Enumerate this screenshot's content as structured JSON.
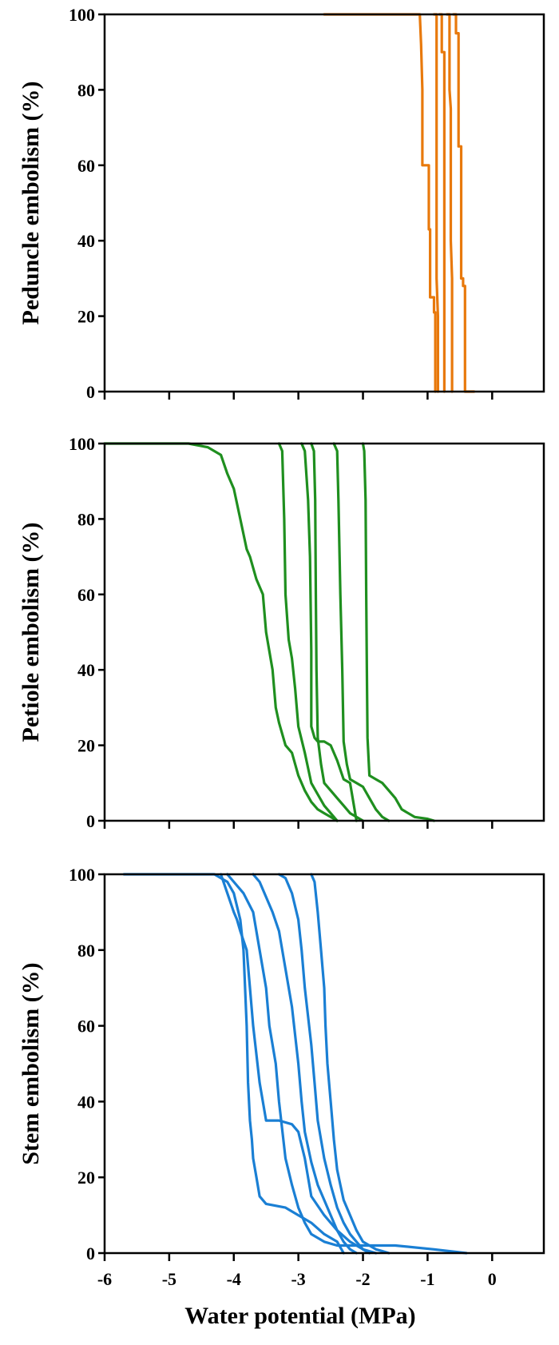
{
  "chart_data": [
    {
      "type": "line",
      "ylabel": "Peduncle embolism (%)",
      "xlabel": "",
      "xlim": [
        -6,
        0.8
      ],
      "ylim": [
        0,
        100
      ],
      "yticks": [
        0,
        20,
        40,
        60,
        80,
        100
      ],
      "xticks": [
        -6,
        -5,
        -4,
        -3,
        -2,
        -1,
        0
      ],
      "xtick_labels_visible": false,
      "grid": false,
      "color": "#e8790c",
      "series": [
        {
          "x": [
            -2.6,
            -1.12,
            -1.1,
            -1.08,
            -1.08,
            -0.98,
            -0.98,
            -0.96,
            -0.96,
            -0.9,
            -0.9,
            -0.88,
            -0.88
          ],
          "y": [
            100,
            100,
            92,
            80,
            60,
            60,
            43,
            43,
            25,
            25,
            21,
            21,
            0
          ]
        },
        {
          "x": [
            -0.9,
            -0.86,
            -0.86,
            -0.84,
            -0.84
          ],
          "y": [
            100,
            100,
            30,
            20,
            0
          ]
        },
        {
          "x": [
            -0.82,
            -0.78,
            -0.78,
            -0.74,
            -0.74,
            -0.74
          ],
          "y": [
            100,
            100,
            90,
            90,
            40,
            0
          ]
        },
        {
          "x": [
            -0.7,
            -0.66,
            -0.66,
            -0.64,
            -0.64,
            -0.62,
            -0.62
          ],
          "y": [
            100,
            100,
            80,
            75,
            40,
            30,
            0
          ]
        },
        {
          "x": [
            -0.6,
            -0.56,
            -0.56,
            -0.52,
            -0.52,
            -0.48,
            -0.48,
            -0.45,
            -0.45,
            -0.42,
            -0.42,
            -0.28
          ],
          "y": [
            100,
            100,
            95,
            95,
            65,
            65,
            30,
            30,
            28,
            28,
            0,
            0
          ]
        }
      ]
    },
    {
      "type": "line",
      "ylabel": "Petiole embolism (%)",
      "xlabel": "",
      "xlim": [
        -6,
        0.8
      ],
      "ylim": [
        0,
        100
      ],
      "yticks": [
        0,
        20,
        40,
        60,
        80,
        100
      ],
      "xticks": [
        -6,
        -5,
        -4,
        -3,
        -2,
        -1,
        0
      ],
      "xtick_labels_visible": false,
      "grid": false,
      "color": "#1f8f1f",
      "series": [
        {
          "x": [
            -6,
            -4.7,
            -4.4,
            -4.2,
            -4.1,
            -4.0,
            -3.9,
            -3.8,
            -3.75,
            -3.65,
            -3.55,
            -3.5,
            -3.4,
            -3.35,
            -3.3,
            -3.2,
            -3.1,
            -3.0,
            -2.9,
            -2.8,
            -2.7,
            -2.6,
            -2.5,
            -2.4
          ],
          "y": [
            100,
            100,
            99,
            97,
            92,
            88,
            80,
            72,
            70,
            64,
            60,
            50,
            40,
            30,
            26,
            20,
            18,
            12,
            8,
            5,
            3,
            2,
            1,
            0
          ]
        },
        {
          "x": [
            -3.3,
            -3.25,
            -3.22,
            -3.2,
            -3.15,
            -3.1,
            -3.05,
            -3.0,
            -2.9,
            -2.8,
            -2.7,
            -2.6,
            -2.5,
            -2.4
          ],
          "y": [
            100,
            98,
            80,
            60,
            48,
            43,
            35,
            25,
            18,
            10,
            7,
            4,
            2,
            0
          ]
        },
        {
          "x": [
            -2.95,
            -2.9,
            -2.85,
            -2.82,
            -2.8,
            -2.8,
            -2.75,
            -2.7,
            -2.6,
            -2.5,
            -2.4,
            -2.3,
            -2.2,
            -2.1
          ],
          "y": [
            100,
            98,
            85,
            70,
            45,
            25,
            22,
            21,
            21,
            20,
            16,
            11,
            10,
            0
          ]
        },
        {
          "x": [
            -2.8,
            -2.76,
            -2.74,
            -2.73,
            -2.72,
            -2.7,
            -2.65,
            -2.6,
            -2.5,
            -2.4,
            -2.3,
            -2.2,
            -2.1,
            -2.0
          ],
          "y": [
            100,
            98,
            85,
            60,
            40,
            22,
            15,
            10,
            8,
            6,
            4,
            2,
            1,
            0
          ]
        },
        {
          "x": [
            -2.45,
            -2.4,
            -2.38,
            -2.35,
            -2.32,
            -2.3,
            -2.25,
            -2.2,
            -2.1,
            -2.0,
            -1.9,
            -1.8,
            -1.7,
            -1.6
          ],
          "y": [
            100,
            98,
            85,
            60,
            40,
            21,
            15,
            11,
            10,
            9,
            6,
            3,
            1,
            0
          ]
        },
        {
          "x": [
            -2.0,
            -1.98,
            -1.96,
            -1.95,
            -1.94,
            -1.93,
            -1.9,
            -1.8,
            -1.7,
            -1.6,
            -1.5,
            -1.4,
            -1.2,
            -1.0,
            -0.9
          ],
          "y": [
            100,
            98,
            85,
            60,
            40,
            22,
            12,
            11,
            10,
            8,
            6,
            3,
            1,
            0.5,
            0
          ]
        }
      ]
    },
    {
      "type": "line",
      "ylabel": "Stem embolism (%)",
      "xlabel": "Water potential (MPa)",
      "xlim": [
        -6,
        0.8
      ],
      "ylim": [
        0,
        100
      ],
      "yticks": [
        0,
        20,
        40,
        60,
        80,
        100
      ],
      "xticks": [
        -6,
        -5,
        -4,
        -3,
        -2,
        -1,
        0
      ],
      "xtick_labels": [
        "-6",
        "-5",
        "-4",
        "-3",
        "-2",
        "-1",
        "0"
      ],
      "grid": false,
      "color": "#1a7fd4",
      "series": [
        {
          "x": [
            -5.7,
            -4.3,
            -4.1,
            -4.0,
            -3.9,
            -3.85,
            -3.8,
            -3.78,
            -3.75,
            -3.72,
            -3.7,
            -3.65,
            -3.6,
            -3.5,
            -3.2,
            -3.0,
            -2.8,
            -2.6,
            -2.4,
            -2.3
          ],
          "y": [
            100,
            100,
            98,
            95,
            88,
            80,
            60,
            45,
            35,
            30,
            25,
            20,
            15,
            13,
            12,
            10,
            8,
            5,
            3,
            0
          ]
        },
        {
          "x": [
            -4.2,
            -4.1,
            -4.0,
            -3.95,
            -3.9,
            -3.8,
            -3.75,
            -3.7,
            -3.6,
            -3.5,
            -3.3,
            -3.1,
            -3.0,
            -2.9,
            -2.8,
            -2.6,
            -2.4,
            -2.2,
            -2.0,
            -1.8
          ],
          "y": [
            100,
            95,
            90,
            88,
            85,
            80,
            70,
            60,
            45,
            35,
            35,
            34,
            32,
            25,
            15,
            10,
            6,
            3,
            1,
            0
          ]
        },
        {
          "x": [
            -4.1,
            -4.0,
            -3.85,
            -3.7,
            -3.6,
            -3.5,
            -3.45,
            -3.4,
            -3.35,
            -3.3,
            -3.2,
            -3.1,
            -3.0,
            -2.9,
            -2.8,
            -2.6,
            -2.4,
            -2.2,
            -2.0,
            -1.5,
            -0.9,
            -0.4
          ],
          "y": [
            100,
            98,
            95,
            90,
            80,
            70,
            60,
            55,
            50,
            40,
            25,
            18,
            12,
            8,
            5,
            3,
            2,
            2,
            2,
            2,
            1,
            0
          ]
        },
        {
          "x": [
            -3.7,
            -3.6,
            -3.4,
            -3.3,
            -3.2,
            -3.1,
            -3.0,
            -2.95,
            -2.9,
            -2.8,
            -2.7,
            -2.6,
            -2.5,
            -2.4,
            -2.3,
            -2.2,
            -2.1
          ],
          "y": [
            100,
            98,
            90,
            85,
            75,
            65,
            50,
            40,
            32,
            24,
            18,
            14,
            10,
            6,
            3,
            1,
            0
          ]
        },
        {
          "x": [
            -3.3,
            -3.2,
            -3.1,
            -3.0,
            -2.95,
            -2.9,
            -2.8,
            -2.75,
            -2.7,
            -2.6,
            -2.5,
            -2.4,
            -2.3,
            -2.2,
            -2.1,
            -2.0,
            -1.9
          ],
          "y": [
            100,
            99,
            95,
            88,
            80,
            70,
            55,
            45,
            35,
            25,
            18,
            12,
            8,
            5,
            3,
            1,
            0
          ]
        },
        {
          "x": [
            -2.8,
            -2.75,
            -2.7,
            -2.65,
            -2.6,
            -2.58,
            -2.55,
            -2.5,
            -2.45,
            -2.4,
            -2.35,
            -2.3,
            -2.2,
            -2.1,
            -2.0,
            -1.9,
            -1.8,
            -1.7,
            -1.6
          ],
          "y": [
            100,
            98,
            90,
            80,
            70,
            60,
            50,
            40,
            30,
            22,
            18,
            14,
            10,
            6,
            3,
            2,
            1,
            0.5,
            0
          ]
        }
      ]
    }
  ]
}
